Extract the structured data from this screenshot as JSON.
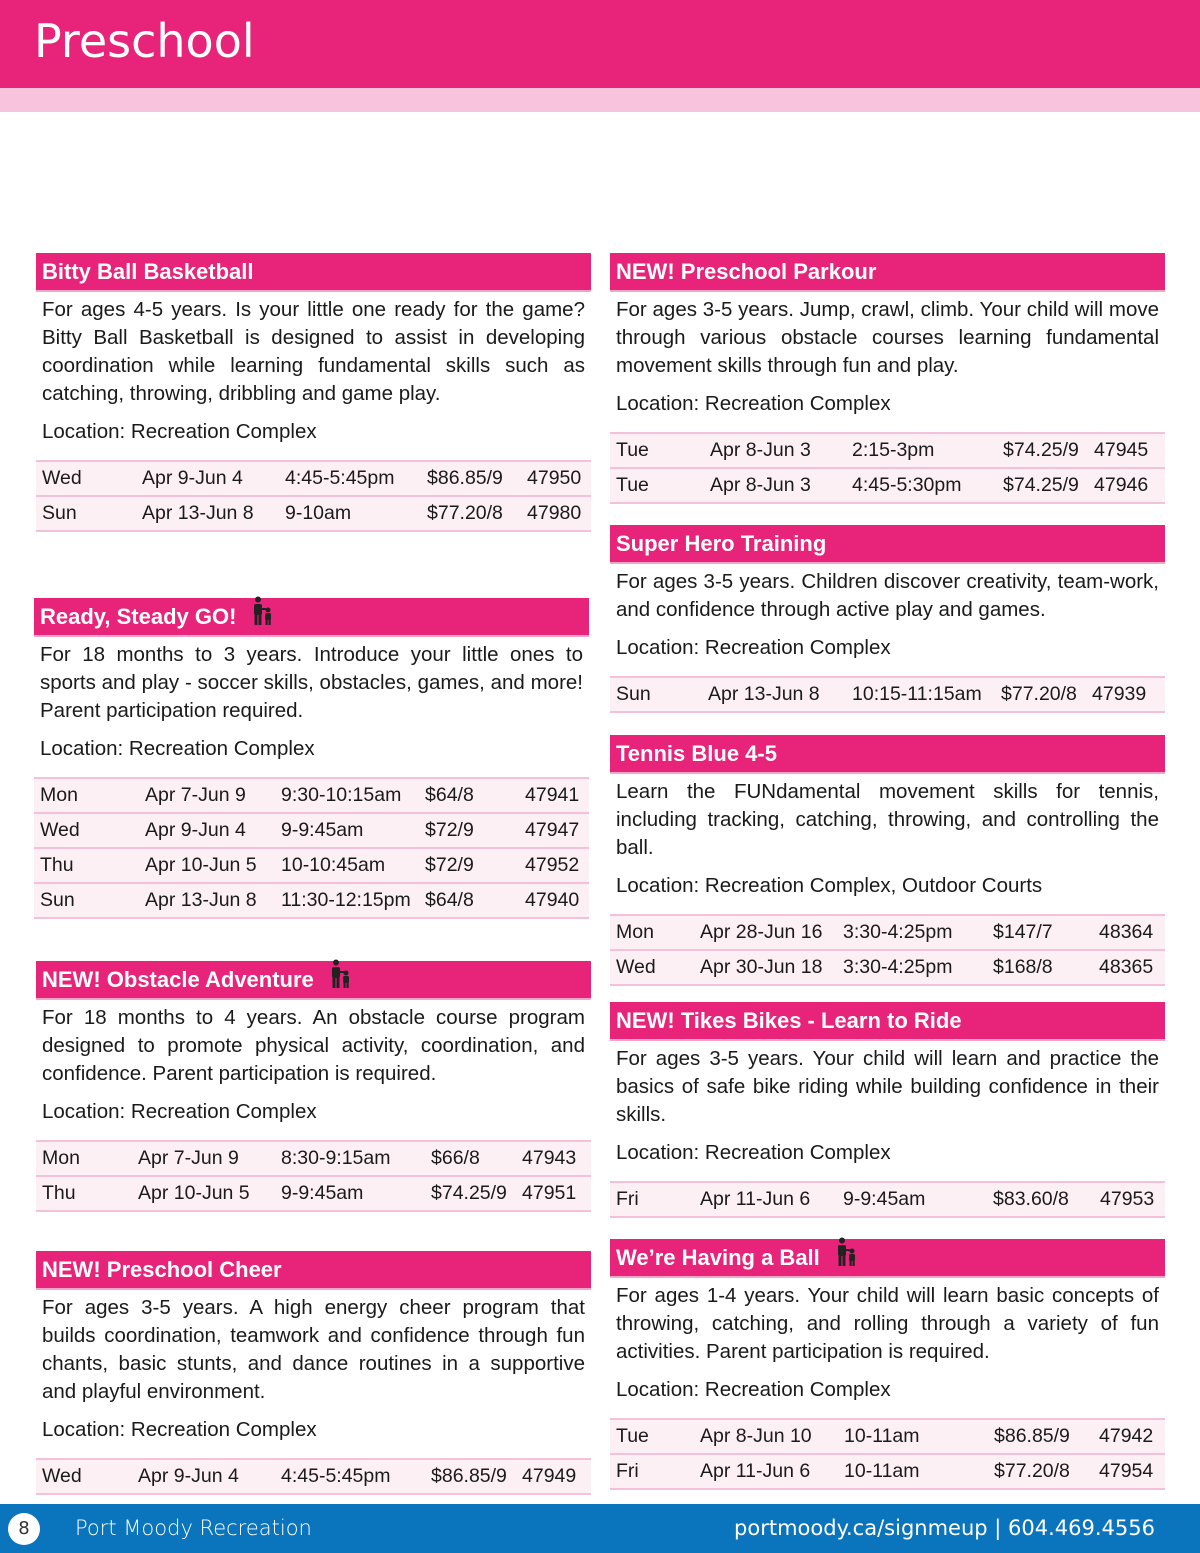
{
  "page_title": "Preschool",
  "colors": {
    "brand_pink": "#e8237a",
    "light_pink": "#f8c3dc",
    "footer_blue": "#0a74bc"
  },
  "sections": [
    {
      "title": "Bitty Ball Basketball",
      "icon": null,
      "description": "For ages 4-5 years. Is your little one ready for the game? Bitty Ball Basketball is designed to assist in developing coordination while learning fundamental skills such as catching, throwing, dribbling and game play.",
      "location": "Location: Recreation Complex",
      "rows": [
        [
          "Wed",
          "Apr 9-Jun 4",
          "4:45-5:45pm",
          "$86.85/9",
          "47950"
        ],
        [
          "Sun",
          "Apr 13-Jun 8",
          "9-10am",
          "$77.20/8",
          "47980"
        ]
      ]
    },
    {
      "title": "Ready, Steady GO!",
      "icon": "parent-child-icon",
      "description": "For 18 months to 3 years. Introduce your little ones to sports and play - soccer skills, obstacles, games, and more! Parent participation required.",
      "location": "Location: Recreation Complex",
      "rows": [
        [
          "Mon",
          "Apr 7-Jun 9",
          "9:30-10:15am",
          "$64/8",
          "47941"
        ],
        [
          "Wed",
          "Apr 9-Jun 4",
          "9-9:45am",
          "$72/9",
          "47947"
        ],
        [
          "Thu",
          "Apr 10-Jun 5",
          "10-10:45am",
          "$72/9",
          "47952"
        ],
        [
          "Sun",
          "Apr 13-Jun 8",
          "11:30-12:15pm",
          "$64/8",
          "47940"
        ]
      ]
    },
    {
      "title": "NEW! Obstacle Adventure",
      "icon": "parent-child-icon",
      "description": "For 18 months to 4 years. An obstacle course program designed to promote physical activity, coordination, and confidence. Parent participation is required.",
      "location": "Location: Recreation Complex",
      "rows": [
        [
          "Mon",
          "Apr 7-Jun 9",
          "8:30-9:15am",
          "$66/8",
          "47943"
        ],
        [
          "Thu",
          "Apr 10-Jun 5",
          "9-9:45am",
          "$74.25/9",
          "47951"
        ]
      ]
    },
    {
      "title": "NEW! Preschool Cheer",
      "icon": null,
      "description": "For ages 3-5 years. A high energy cheer program that builds coordination, teamwork and confidence through fun chants, basic stunts, and dance routines in a supportive and playful environment.",
      "location": "Location: Recreation Complex",
      "rows": [
        [
          "Wed",
          "Apr 9-Jun 4",
          "4:45-5:45pm",
          "$86.85/9",
          "47949"
        ]
      ]
    },
    {
      "title": "NEW! Preschool Parkour",
      "icon": null,
      "description": "For ages 3-5 years. Jump, crawl, climb. Your child will move through various obstacle courses learning fundamental movement skills through fun and play.",
      "location": "Location: Recreation Complex",
      "rows": [
        [
          "Tue",
          "Apr 8-Jun 3",
          "2:15-3pm",
          "$74.25/9",
          "47945"
        ],
        [
          "Tue",
          "Apr 8-Jun 3",
          "4:45-5:30pm",
          "$74.25/9",
          "47946"
        ]
      ]
    },
    {
      "title": "Super Hero Training",
      "icon": null,
      "description": "For ages 3-5 years. Children discover creativity, team-work, and confidence through active play and games.",
      "location": "Location: Recreation Complex",
      "rows": [
        [
          "Sun",
          "Apr 13-Jun 8",
          "10:15-11:15am",
          "$77.20/8",
          "47939"
        ]
      ]
    },
    {
      "title": "Tennis Blue 4-5",
      "icon": null,
      "description": "Learn the FUNdamental movement skills for tennis, including tracking, catching, throwing, and controlling the ball.",
      "location": "Location: Recreation Complex, Outdoor Courts",
      "rows": [
        [
          "Mon",
          "Apr 28-Jun 16",
          "3:30-4:25pm",
          "$147/7",
          "48364"
        ],
        [
          "Wed",
          "Apr 30-Jun 18",
          "3:30-4:25pm",
          "$168/8",
          "48365"
        ]
      ]
    },
    {
      "title": "NEW! Tikes Bikes - Learn to Ride",
      "icon": null,
      "description": "For ages 3-5 years. Your child will learn and practice the basics of safe bike riding while building confidence in their skills.",
      "location": "Location: Recreation Complex",
      "rows": [
        [
          "Fri",
          "Apr 11-Jun 6",
          "9-9:45am",
          "$83.60/8",
          "47953"
        ]
      ]
    },
    {
      "title": "We’re Having a Ball",
      "icon": "parent-child-icon",
      "description": "For ages 1-4 years. Your child will learn basic concepts of throwing, catching, and rolling through a variety of fun activities. Parent participation is required.",
      "location": "Location: Recreation Complex",
      "rows": [
        [
          "Tue",
          "Apr 8-Jun 10",
          "10-11am",
          "$86.85/9",
          "47942"
        ],
        [
          "Fri",
          "Apr 11-Jun 6",
          "10-11am",
          "$77.20/8",
          "47954"
        ]
      ]
    }
  ],
  "footer": {
    "page_number": "8",
    "organization": "Port Moody Recreation",
    "contact": "portmoody.ca/signmeup | 604.469.4556"
  }
}
